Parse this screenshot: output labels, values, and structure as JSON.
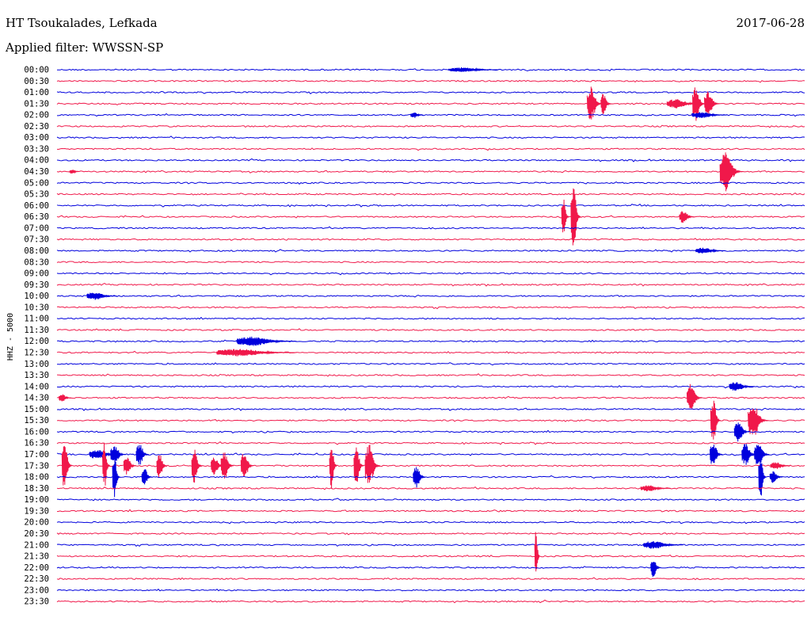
{
  "header": {
    "station": "HT Tsoukalades, Lefkada",
    "date": "2017-06-28",
    "filter": "Applied filter: WWSSN-SP"
  },
  "channel_label": "HHZ - 5000",
  "colors": {
    "even_trace": "#0000dd",
    "odd_trace": "#f0184a"
  },
  "chart_data": {
    "type": "line",
    "title": "HT Tsoukalades, Lefkada",
    "subtitle": "Applied filter: WWSSN-SP",
    "ylabel": "HHZ - 5000",
    "xlabel": "",
    "row_labels": [
      "00:00",
      "00:30",
      "01:00",
      "01:30",
      "02:00",
      "02:30",
      "03:00",
      "03:30",
      "04:00",
      "04:30",
      "05:00",
      "05:30",
      "06:00",
      "06:30",
      "07:00",
      "07:30",
      "08:00",
      "08:30",
      "09:00",
      "09:30",
      "10:00",
      "10:30",
      "11:00",
      "11:30",
      "12:00",
      "12:30",
      "13:00",
      "13:30",
      "14:00",
      "14:30",
      "15:00",
      "15:30",
      "16:00",
      "16:30",
      "17:00",
      "17:30",
      "18:00",
      "18:30",
      "19:00",
      "19:30",
      "20:00",
      "20:30",
      "21:00",
      "21:30",
      "22:00",
      "22:30",
      "23:00",
      "23:30"
    ],
    "x_range_minutes": [
      0,
      30
    ],
    "grid": false,
    "legend": "none",
    "events": [
      {
        "row": 0,
        "minute": 16.2,
        "amp": 3,
        "dur": 2.0
      },
      {
        "row": 3,
        "minute": 21.4,
        "amp": 22,
        "dur": 0.6
      },
      {
        "row": 3,
        "minute": 21.9,
        "amp": 14,
        "dur": 0.4
      },
      {
        "row": 3,
        "minute": 24.8,
        "amp": 6,
        "dur": 1.4
      },
      {
        "row": 3,
        "minute": 25.6,
        "amp": 22,
        "dur": 0.5
      },
      {
        "row": 3,
        "minute": 26.1,
        "amp": 16,
        "dur": 0.6
      },
      {
        "row": 4,
        "minute": 14.3,
        "amp": 4,
        "dur": 0.5
      },
      {
        "row": 4,
        "minute": 25.8,
        "amp": 4,
        "dur": 1.4
      },
      {
        "row": 9,
        "minute": 26.8,
        "amp": 26,
        "dur": 0.9
      },
      {
        "row": 9,
        "minute": 0.6,
        "amp": 3,
        "dur": 0.4
      },
      {
        "row": 13,
        "minute": 20.3,
        "amp": 26,
        "dur": 0.3
      },
      {
        "row": 13,
        "minute": 20.7,
        "amp": 40,
        "dur": 0.4
      },
      {
        "row": 13,
        "minute": 25.1,
        "amp": 8,
        "dur": 0.6
      },
      {
        "row": 16,
        "minute": 25.9,
        "amp": 4,
        "dur": 1.2
      },
      {
        "row": 20,
        "minute": 1.5,
        "amp": 5,
        "dur": 1.2
      },
      {
        "row": 24,
        "minute": 7.8,
        "amp": 6,
        "dur": 2.4
      },
      {
        "row": 25,
        "minute": 7.2,
        "amp": 5,
        "dur": 3.2
      },
      {
        "row": 28,
        "minute": 27.2,
        "amp": 6,
        "dur": 1.0
      },
      {
        "row": 29,
        "minute": 0.2,
        "amp": 5,
        "dur": 0.5
      },
      {
        "row": 29,
        "minute": 25.4,
        "amp": 18,
        "dur": 0.6
      },
      {
        "row": 31,
        "minute": 26.3,
        "amp": 30,
        "dur": 0.4
      },
      {
        "row": 31,
        "minute": 27.9,
        "amp": 22,
        "dur": 0.8
      },
      {
        "row": 32,
        "minute": 27.3,
        "amp": 14,
        "dur": 0.6
      },
      {
        "row": 34,
        "minute": 1.6,
        "amp": 6,
        "dur": 1.2
      },
      {
        "row": 34,
        "minute": 2.3,
        "amp": 12,
        "dur": 0.6
      },
      {
        "row": 34,
        "minute": 3.3,
        "amp": 14,
        "dur": 0.5
      },
      {
        "row": 34,
        "minute": 26.3,
        "amp": 16,
        "dur": 0.5
      },
      {
        "row": 34,
        "minute": 27.6,
        "amp": 14,
        "dur": 0.6
      },
      {
        "row": 34,
        "minute": 28.1,
        "amp": 16,
        "dur": 0.6
      },
      {
        "row": 35,
        "minute": 0.3,
        "amp": 30,
        "dur": 0.4
      },
      {
        "row": 35,
        "minute": 1.9,
        "amp": 30,
        "dur": 0.3
      },
      {
        "row": 35,
        "minute": 2.8,
        "amp": 12,
        "dur": 0.5
      },
      {
        "row": 35,
        "minute": 4.1,
        "amp": 18,
        "dur": 0.4
      },
      {
        "row": 35,
        "minute": 5.5,
        "amp": 22,
        "dur": 0.4
      },
      {
        "row": 35,
        "minute": 6.3,
        "amp": 12,
        "dur": 0.5
      },
      {
        "row": 35,
        "minute": 6.7,
        "amp": 18,
        "dur": 0.5
      },
      {
        "row": 35,
        "minute": 7.5,
        "amp": 18,
        "dur": 0.5
      },
      {
        "row": 35,
        "minute": 11.0,
        "amp": 30,
        "dur": 0.3
      },
      {
        "row": 35,
        "minute": 12.0,
        "amp": 24,
        "dur": 0.4
      },
      {
        "row": 35,
        "minute": 12.5,
        "amp": 28,
        "dur": 0.6
      },
      {
        "row": 35,
        "minute": 28.8,
        "amp": 5,
        "dur": 0.8
      },
      {
        "row": 36,
        "minute": 2.3,
        "amp": 30,
        "dur": 0.3
      },
      {
        "row": 36,
        "minute": 3.5,
        "amp": 12,
        "dur": 0.4
      },
      {
        "row": 36,
        "minute": 14.4,
        "amp": 14,
        "dur": 0.5
      },
      {
        "row": 36,
        "minute": 28.2,
        "amp": 30,
        "dur": 0.3
      },
      {
        "row": 36,
        "minute": 28.7,
        "amp": 8,
        "dur": 0.5
      },
      {
        "row": 37,
        "minute": 23.7,
        "amp": 4,
        "dur": 1.2
      },
      {
        "row": 42,
        "minute": 23.9,
        "amp": 5,
        "dur": 1.6
      },
      {
        "row": 43,
        "minute": 19.2,
        "amp": 34,
        "dur": 0.2
      },
      {
        "row": 44,
        "minute": 23.9,
        "amp": 12,
        "dur": 0.4
      }
    ]
  }
}
